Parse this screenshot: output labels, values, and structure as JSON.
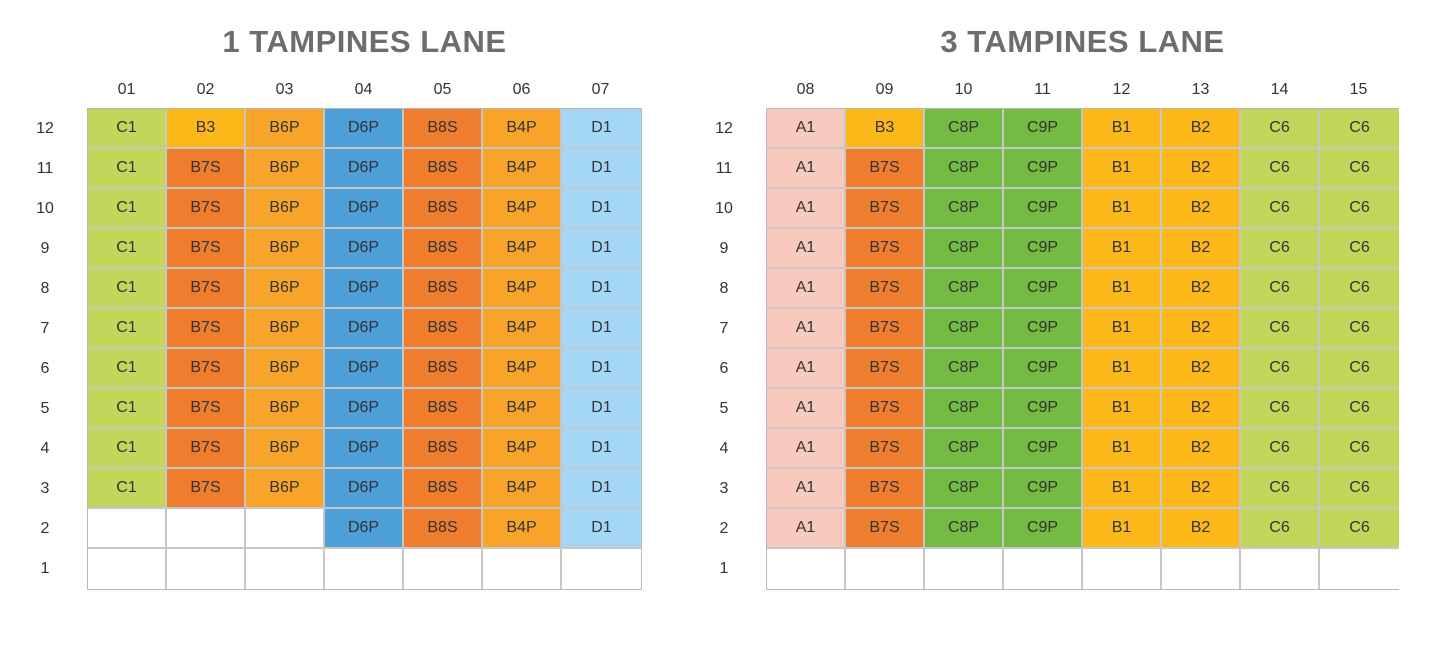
{
  "colors": {
    "C1": "#c3d65a",
    "B3": "#fbb818",
    "B6P": "#f8a42a",
    "D6P": "#4d9fd8",
    "B8S": "#ee7e2d",
    "B4P": "#f8a42a",
    "D1": "#a4d7f4",
    "B7S": "#ee7e2d",
    "A1": "#f8c9bd",
    "C8P": "#74bb43",
    "C9P": "#74bb43",
    "B1": "#fbb818",
    "B2": "#fbb818",
    "C6": "#c3d65a",
    "": "#ffffff"
  },
  "blocks": [
    {
      "title": "1 TAMPINES LANE",
      "columns": [
        "01",
        "02",
        "03",
        "04",
        "05",
        "06",
        "07"
      ],
      "rows": [
        {
          "floor": "12",
          "units": [
            "C1",
            "B3",
            "B6P",
            "D6P",
            "B8S",
            "B4P",
            "D1"
          ]
        },
        {
          "floor": "11",
          "units": [
            "C1",
            "B7S",
            "B6P",
            "D6P",
            "B8S",
            "B4P",
            "D1"
          ]
        },
        {
          "floor": "10",
          "units": [
            "C1",
            "B7S",
            "B6P",
            "D6P",
            "B8S",
            "B4P",
            "D1"
          ]
        },
        {
          "floor": "9",
          "units": [
            "C1",
            "B7S",
            "B6P",
            "D6P",
            "B8S",
            "B4P",
            "D1"
          ]
        },
        {
          "floor": "8",
          "units": [
            "C1",
            "B7S",
            "B6P",
            "D6P",
            "B8S",
            "B4P",
            "D1"
          ]
        },
        {
          "floor": "7",
          "units": [
            "C1",
            "B7S",
            "B6P",
            "D6P",
            "B8S",
            "B4P",
            "D1"
          ]
        },
        {
          "floor": "6",
          "units": [
            "C1",
            "B7S",
            "B6P",
            "D6P",
            "B8S",
            "B4P",
            "D1"
          ]
        },
        {
          "floor": "5",
          "units": [
            "C1",
            "B7S",
            "B6P",
            "D6P",
            "B8S",
            "B4P",
            "D1"
          ]
        },
        {
          "floor": "4",
          "units": [
            "C1",
            "B7S",
            "B6P",
            "D6P",
            "B8S",
            "B4P",
            "D1"
          ]
        },
        {
          "floor": "3",
          "units": [
            "C1",
            "B7S",
            "B6P",
            "D6P",
            "B8S",
            "B4P",
            "D1"
          ]
        },
        {
          "floor": "2",
          "units": [
            "",
            "",
            "",
            "D6P",
            "B8S",
            "B4P",
            "D1"
          ]
        },
        {
          "floor": "1",
          "units": [
            "",
            "",
            "",
            "",
            "",
            "",
            ""
          ]
        }
      ]
    },
    {
      "title": "3 TAMPINES LANE",
      "columns": [
        "08",
        "09",
        "10",
        "11",
        "12",
        "13",
        "14",
        "15"
      ],
      "rows": [
        {
          "floor": "12",
          "units": [
            "A1",
            "B3",
            "C8P",
            "C9P",
            "B1",
            "B2",
            "C6",
            "C6"
          ]
        },
        {
          "floor": "11",
          "units": [
            "A1",
            "B7S",
            "C8P",
            "C9P",
            "B1",
            "B2",
            "C6",
            "C6"
          ]
        },
        {
          "floor": "10",
          "units": [
            "A1",
            "B7S",
            "C8P",
            "C9P",
            "B1",
            "B2",
            "C6",
            "C6"
          ]
        },
        {
          "floor": "9",
          "units": [
            "A1",
            "B7S",
            "C8P",
            "C9P",
            "B1",
            "B2",
            "C6",
            "C6"
          ]
        },
        {
          "floor": "8",
          "units": [
            "A1",
            "B7S",
            "C8P",
            "C9P",
            "B1",
            "B2",
            "C6",
            "C6"
          ]
        },
        {
          "floor": "7",
          "units": [
            "A1",
            "B7S",
            "C8P",
            "C9P",
            "B1",
            "B2",
            "C6",
            "C6"
          ]
        },
        {
          "floor": "6",
          "units": [
            "A1",
            "B7S",
            "C8P",
            "C9P",
            "B1",
            "B2",
            "C6",
            "C6"
          ]
        },
        {
          "floor": "5",
          "units": [
            "A1",
            "B7S",
            "C8P",
            "C9P",
            "B1",
            "B2",
            "C6",
            "C6"
          ]
        },
        {
          "floor": "4",
          "units": [
            "A1",
            "B7S",
            "C8P",
            "C9P",
            "B1",
            "B2",
            "C6",
            "C6"
          ]
        },
        {
          "floor": "3",
          "units": [
            "A1",
            "B7S",
            "C8P",
            "C9P",
            "B1",
            "B2",
            "C6",
            "C6"
          ]
        },
        {
          "floor": "2",
          "units": [
            "A1",
            "B7S",
            "C8P",
            "C9P",
            "B1",
            "B2",
            "C6",
            "C6"
          ]
        },
        {
          "floor": "1",
          "units": [
            "",
            "",
            "",
            "",
            "",
            "",
            "",
            ""
          ]
        }
      ]
    }
  ]
}
